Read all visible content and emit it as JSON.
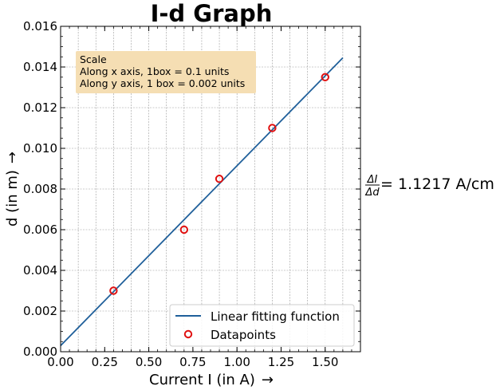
{
  "chart_data": {
    "type": "scatter",
    "title": "I-d Graph",
    "xlabel": "Current I (in A)",
    "ylabel": "d (in m)",
    "axis_arrow": "→",
    "xlim": [
      0.0,
      1.7
    ],
    "ylim": [
      0.0,
      0.016
    ],
    "xticks": [
      0.0,
      0.25,
      0.5,
      0.75,
      1.0,
      1.25,
      1.5
    ],
    "xtick_labels": [
      "0.00",
      "0.25",
      "0.50",
      "0.75",
      "1.00",
      "1.25",
      "1.50"
    ],
    "yticks": [
      0.0,
      0.002,
      0.004,
      0.006,
      0.008,
      0.01,
      0.012,
      0.014,
      0.016
    ],
    "ytick_labels": [
      "0.000",
      "0.002",
      "0.004",
      "0.006",
      "0.008",
      "0.010",
      "0.012",
      "0.014",
      "0.016"
    ],
    "grid_x": [
      0.0,
      0.1,
      0.2,
      0.3,
      0.4,
      0.5,
      0.6,
      0.7,
      0.8,
      0.9,
      1.0,
      1.1,
      1.2,
      1.3,
      1.4,
      1.5,
      1.6,
      1.7
    ],
    "grid_y": [
      0.0,
      0.002,
      0.004,
      0.006,
      0.008,
      0.01,
      0.012,
      0.014,
      0.016
    ],
    "grid": true,
    "legend_position": "bottom-right",
    "series": [
      {
        "name": "Linear fitting function",
        "kind": "line",
        "color": "#1f5f9a",
        "x": [
          0.0,
          1.6
        ],
        "y": [
          0.0003,
          0.01445
        ]
      },
      {
        "name": "Datapoints",
        "kind": "scatter",
        "color": "#e01010",
        "x": [
          0.3,
          0.7,
          0.9,
          1.2,
          1.5
        ],
        "y": [
          0.003,
          0.006,
          0.0085,
          0.011,
          0.0135
        ]
      }
    ],
    "scale_box": {
      "lines": [
        "Scale",
        "Along x axis, 1box = 0.1 units",
        "Along y axis, 1 box = 0.002 units"
      ],
      "color": "#f5deb3"
    },
    "slope_annotation": {
      "numerator": "ΔI",
      "denominator": "Δd",
      "text": "= 1.1217 A/cm"
    }
  }
}
